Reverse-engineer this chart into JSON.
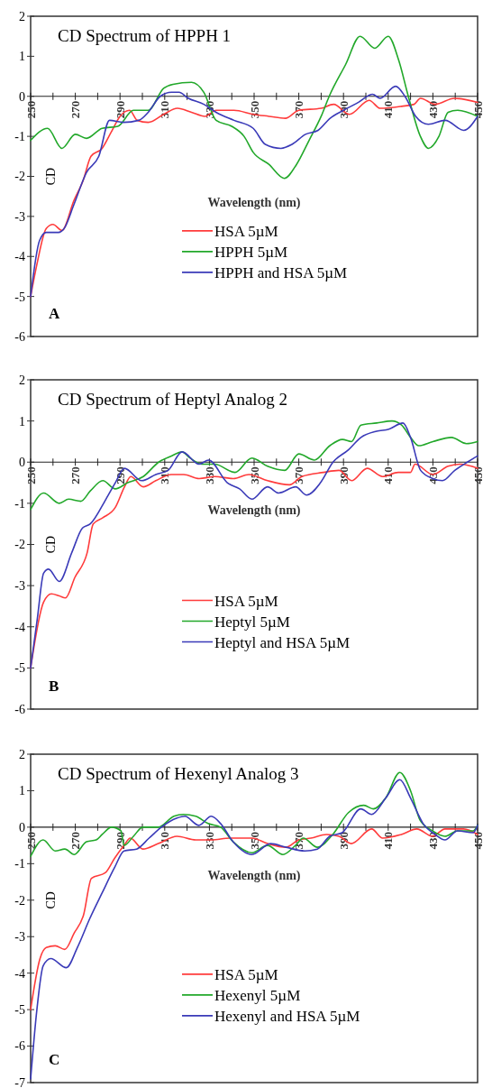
{
  "chart_data": [
    {
      "type": "line",
      "title": "CD Spectrum of HPPH 1",
      "xlabel": "Wavelength (nm)",
      "ylabel": "CD",
      "annotations": [
        "A"
      ],
      "legend": "bottom",
      "xlim": [
        250,
        450
      ],
      "xticks": [
        250,
        {
          "value": 260,
          "label": null
        },
        270,
        {
          "value": 280,
          "label": null
        },
        290,
        {
          "value": 300,
          "label": null
        },
        310,
        {
          "value": 320,
          "label": null
        },
        330,
        {
          "value": 340,
          "label": null
        },
        350,
        {
          "value": 360,
          "label": null
        },
        370,
        {
          "value": 380,
          "label": null
        },
        390,
        {
          "value": 400,
          "label": null
        },
        410,
        {
          "value": 420,
          "label": null
        },
        430,
        {
          "value": 440,
          "label": null
        },
        450
      ],
      "ylim": [
        -6,
        2
      ],
      "yticks": [
        -6,
        -5,
        -4,
        -3,
        -2,
        -1,
        0,
        1,
        2
      ],
      "series": [
        {
          "name": "HSA 5µM",
          "color": "#ff3b3b",
          "x": [
            250,
            252.8,
            257,
            260,
            264,
            269.4,
            273.5,
            277,
            282,
            286,
            290,
            294.3,
            297.7,
            302.6,
            309.5,
            315.7,
            322,
            328,
            333,
            341,
            349.6,
            356.6,
            364,
            370,
            380,
            385.6,
            392.6,
            401.5,
            406.4,
            416,
            421.6,
            424.4,
            431,
            439.6,
            450
          ],
          "values": [
            -5,
            -4.2,
            -3.3,
            -3.2,
            -3.35,
            -2.6,
            -2.1,
            -1.5,
            -1.3,
            -0.9,
            -0.5,
            -0.35,
            -0.6,
            -0.65,
            -0.45,
            -0.3,
            -0.4,
            -0.5,
            -0.35,
            -0.35,
            -0.45,
            -0.5,
            -0.55,
            -0.35,
            -0.3,
            -0.2,
            -0.45,
            -0.1,
            -0.3,
            -0.25,
            -0.2,
            -0.05,
            -0.2,
            -0.05,
            -0.15
          ]
        },
        {
          "name": "HPPH 5µM",
          "color": "#22a82a",
          "x": [
            250,
            257.6,
            264,
            270,
            275,
            282,
            289,
            296,
            302.6,
            309.5,
            313.7,
            322,
            327.5,
            333,
            340,
            345.5,
            349.6,
            356.6,
            363.5,
            369,
            374.6,
            380,
            383.6,
            391,
            397.4,
            404,
            410,
            414.7,
            419,
            424.4,
            428,
            432.7,
            436.8,
            441,
            450
          ],
          "values": [
            -1.1,
            -0.8,
            -1.3,
            -0.95,
            -1.05,
            -0.8,
            -0.75,
            -0.35,
            -0.35,
            0.2,
            0.3,
            0.35,
            0.1,
            -0.6,
            -0.75,
            -1.0,
            -1.4,
            -1.7,
            -2.05,
            -1.7,
            -1.1,
            -0.5,
            0,
            0.8,
            1.5,
            1.2,
            1.5,
            0.9,
            0,
            -1.0,
            -1.3,
            -1.0,
            -0.4,
            -0.35,
            -0.5
          ]
        },
        {
          "name": "HPPH and HSA 5µM",
          "color": "#3a3ab8",
          "x": [
            250,
            254,
            257,
            262.5,
            265,
            269.4,
            275,
            280.5,
            285.3,
            291.5,
            298.4,
            302.6,
            308,
            313,
            316.4,
            320.6,
            327.5,
            333,
            341,
            349.6,
            355,
            362,
            367,
            373,
            378.6,
            384,
            390,
            396.7,
            403,
            406.4,
            413.3,
            417.5,
            422.3,
            428,
            435.5,
            443.8,
            450
          ],
          "values": [
            -5,
            -3.6,
            -3.4,
            -3.4,
            -3.3,
            -2.7,
            -1.9,
            -1.5,
            -0.6,
            -0.65,
            -0.6,
            -0.4,
            0,
            0.1,
            0.1,
            -0.05,
            -0.2,
            -0.4,
            -0.6,
            -0.8,
            -1.2,
            -1.3,
            -1.2,
            -0.95,
            -0.85,
            -0.55,
            -0.35,
            -0.15,
            0.05,
            -0.05,
            0.25,
            0,
            -0.5,
            -0.7,
            -0.6,
            -0.85,
            -0.5
          ]
        }
      ]
    },
    {
      "type": "line",
      "title": "CD Spectrum of Heptyl Analog 2",
      "xlabel": "Wavelength (nm)",
      "ylabel": "CD",
      "annotations": [
        "B"
      ],
      "legend": "bottom",
      "xlim": [
        250,
        450
      ],
      "xticks": [
        250,
        {
          "value": 260,
          "label": null
        },
        270,
        {
          "value": 280,
          "label": null
        },
        290,
        {
          "value": 300,
          "label": null
        },
        310,
        {
          "value": 320,
          "label": null
        },
        330,
        {
          "value": 340,
          "label": null
        },
        350,
        {
          "value": 360,
          "label": null
        },
        370,
        {
          "value": 380,
          "label": null
        },
        390,
        {
          "value": 400,
          "label": null
        },
        410,
        {
          "value": 420,
          "label": null
        },
        430,
        {
          "value": 440,
          "label": null
        },
        450
      ],
      "ylim": [
        -6,
        2
      ],
      "yticks": [
        -6,
        -5,
        -4,
        -3,
        -2,
        -1,
        0,
        1,
        2
      ],
      "series": [
        {
          "name": "HSA 5µM",
          "color": "#ff3b3b",
          "x": [
            250,
            255.8,
            259.3,
            262.8,
            265.6,
            269.8,
            275.3,
            278,
            282.3,
            287.9,
            292,
            294.8,
            300.4,
            306,
            313,
            318.5,
            325.4,
            332.4,
            340.7,
            347.7,
            356,
            365.8,
            371.4,
            381,
            388,
            393.6,
            400.6,
            407.5,
            414.5,
            420,
            422,
            430,
            436.8,
            442.4,
            450
          ],
          "values": [
            -5,
            -3.4,
            -3.2,
            -3.25,
            -3.3,
            -2.8,
            -2.2,
            -1.5,
            -1.35,
            -1.1,
            -0.6,
            -0.35,
            -0.6,
            -0.45,
            -0.3,
            -0.3,
            -0.4,
            -0.35,
            -0.4,
            -0.3,
            -0.45,
            -0.55,
            -0.35,
            -0.25,
            -0.2,
            -0.45,
            -0.15,
            -0.35,
            -0.25,
            -0.25,
            -0.05,
            -0.3,
            -0.1,
            -0.05,
            -0.15
          ]
        },
        {
          "name": "Heptyl 5µM",
          "color": "#22a82a",
          "x": [
            250,
            255.8,
            262.8,
            267,
            272.5,
            276.7,
            282.3,
            287.9,
            293.4,
            300.4,
            307.3,
            313,
            317.8,
            321.3,
            326.8,
            332.4,
            341.4,
            349,
            356,
            363.7,
            370,
            377,
            383.9,
            389.5,
            393.6,
            397.8,
            404.8,
            411.7,
            416,
            420,
            423.6,
            430,
            438.3,
            445,
            450
          ],
          "values": [
            -1.15,
            -0.75,
            -1.0,
            -0.9,
            -0.95,
            -0.7,
            -0.45,
            -0.65,
            -0.5,
            -0.35,
            0,
            0.15,
            0.25,
            0.1,
            -0.05,
            -0.05,
            -0.25,
            0.1,
            -0.1,
            -0.2,
            0.2,
            0.05,
            0.4,
            0.55,
            0.5,
            0.9,
            0.95,
            1.0,
            0.9,
            0.6,
            0.4,
            0.5,
            0.6,
            0.45,
            0.5
          ]
        },
        {
          "name": "Heptyl and HSA 5µM",
          "color": "#3a3ab8",
          "x": [
            250,
            253,
            255.8,
            258,
            262.8,
            268.4,
            273.2,
            276.7,
            283.7,
            287.9,
            292,
            299.7,
            306,
            311.5,
            317.8,
            325.4,
            329.6,
            338,
            343.5,
            349,
            356,
            361,
            368.6,
            373.5,
            379.7,
            385.3,
            392.2,
            397.8,
            404.8,
            410.3,
            416.6,
            420,
            424.5,
            430,
            434.3,
            439.8,
            445.4,
            450
          ],
          "values": [
            -5,
            -3.8,
            -2.7,
            -2.6,
            -2.9,
            -2.2,
            -1.6,
            -1.5,
            -0.9,
            -0.5,
            -0.15,
            -0.45,
            -0.3,
            -0.2,
            0.25,
            -0.05,
            0.05,
            -0.5,
            -0.65,
            -0.9,
            -0.6,
            -0.75,
            -0.6,
            -0.8,
            -0.5,
            0,
            0.3,
            0.6,
            0.75,
            0.8,
            0.95,
            0.6,
            -0.2,
            -0.4,
            -0.45,
            -0.2,
            0,
            0.15
          ]
        }
      ]
    },
    {
      "type": "line",
      "title": "CD Spectrum of Hexenyl Analog 3",
      "xlabel": "Wavelength (nm)",
      "ylabel": "CD",
      "annotations": [
        "C"
      ],
      "legend": "bottom",
      "xlim": [
        250,
        450
      ],
      "xticks": [
        250,
        {
          "value": 260,
          "label": null
        },
        270,
        {
          "value": 280,
          "label": null
        },
        290,
        {
          "value": 300,
          "label": null
        },
        310,
        {
          "value": 320,
          "label": null
        },
        330,
        {
          "value": 340,
          "label": null
        },
        350,
        {
          "value": 360,
          "label": null
        },
        370,
        {
          "value": 380,
          "label": null
        },
        390,
        {
          "value": 400,
          "label": null
        },
        410,
        {
          "value": 420,
          "label": null
        },
        430,
        {
          "value": 440,
          "label": null
        },
        450
      ],
      "ylim": [
        -7,
        2
      ],
      "yticks": [
        -7,
        -6,
        -5,
        -4,
        -3,
        -2,
        -1,
        0,
        1,
        2
      ],
      "series": [
        {
          "name": "HSA 5µM",
          "color": "#ff3b3b",
          "x": [
            250,
            254.2,
            257,
            261,
            265.3,
            269.5,
            273.7,
            277.2,
            283.4,
            287.6,
            291.8,
            294.6,
            300.2,
            307.1,
            315.5,
            323.9,
            330.8,
            339.2,
            349,
            356,
            364.3,
            370,
            375.4,
            382.4,
            388,
            393.5,
            402.6,
            407.5,
            415.9,
            422.8,
            429.8,
            435.4,
            443.7,
            450
          ],
          "values": [
            -5,
            -3.6,
            -3.3,
            -3.25,
            -3.35,
            -2.9,
            -2.4,
            -1.4,
            -1.25,
            -0.85,
            -0.5,
            -0.3,
            -0.6,
            -0.45,
            -0.25,
            -0.35,
            -0.35,
            -0.3,
            -0.3,
            -0.45,
            -0.55,
            -0.35,
            -0.3,
            -0.2,
            -0.25,
            -0.45,
            -0.05,
            -0.3,
            -0.2,
            -0.05,
            -0.25,
            -0.05,
            -0.05,
            -0.2
          ]
        },
        {
          "name": "Hexenyl 5µM",
          "color": "#22a82a",
          "x": [
            250,
            255.6,
            261,
            265.3,
            269.5,
            275,
            279.3,
            282,
            286.2,
            290.4,
            291.8,
            296,
            300.2,
            307.1,
            314.1,
            318.3,
            323.9,
            329.4,
            335,
            340.6,
            349,
            356,
            362.9,
            368.5,
            372,
            378.3,
            385.2,
            392.2,
            399.1,
            403.3,
            408.9,
            415.2,
            420,
            424.2,
            429.8,
            435.4,
            441,
            448,
            450
          ],
          "values": [
            -0.8,
            -0.35,
            -0.65,
            -0.6,
            -0.75,
            -0.4,
            -0.35,
            -0.2,
            0,
            -0.1,
            -0.5,
            -0.25,
            0,
            0,
            0.3,
            0.35,
            0.3,
            0.1,
            0,
            -0.4,
            -0.7,
            -0.5,
            -0.75,
            -0.5,
            -0.3,
            -0.55,
            -0.2,
            0.4,
            0.6,
            0.5,
            0.8,
            1.5,
            1.0,
            0.2,
            -0.1,
            -0.25,
            -0.1,
            -0.1,
            0.05
          ]
        },
        {
          "name": "Hexenyl and HSA 5µM",
          "color": "#3a3ab8",
          "x": [
            250,
            252.8,
            255.6,
            259,
            266,
            270.9,
            276.5,
            282,
            287.6,
            291.8,
            297.4,
            303,
            308.5,
            315.5,
            319,
            325.3,
            330.8,
            335,
            340.6,
            349,
            357.4,
            364.3,
            372.6,
            378.3,
            383.8,
            389.4,
            397.7,
            402.6,
            408.9,
            415.2,
            420,
            425.6,
            431,
            435.4,
            441,
            448,
            450
          ],
          "values": [
            -6.9,
            -5.0,
            -3.8,
            -3.6,
            -3.85,
            -3.3,
            -2.5,
            -1.8,
            -1.1,
            -0.65,
            -0.6,
            -0.3,
            0,
            0.25,
            0.3,
            0.05,
            0.3,
            0.1,
            -0.4,
            -0.75,
            -0.45,
            -0.55,
            -0.65,
            -0.6,
            -0.25,
            -0.15,
            0.5,
            0.35,
            0.8,
            1.3,
            0.8,
            0.1,
            -0.2,
            -0.35,
            -0.1,
            -0.15,
            0.05
          ]
        }
      ]
    }
  ]
}
